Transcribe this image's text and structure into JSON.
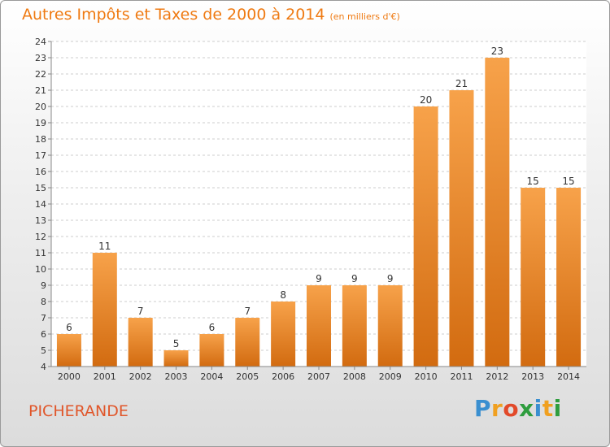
{
  "header": {
    "title": "Autres Impôts et Taxes de 2000 à 2014",
    "unit": "(en milliers d'€)"
  },
  "footer": {
    "place": "PICHERANDE",
    "brand_letters": [
      "P",
      "r",
      "o",
      "x",
      "i",
      "t",
      "i"
    ],
    "brand_colors": [
      "#3a8fd0",
      "#f0a020",
      "#e24a2a",
      "#2e9d3e",
      "#3a8fd0",
      "#f0a020",
      "#2e9d3e"
    ]
  },
  "colors": {
    "bar_light": "#f7a24a",
    "bar_dark": "#d26b10",
    "title": "#ef7a12",
    "axis_text": "#333333",
    "grid": "#cccccc"
  },
  "chart_data": {
    "type": "bar",
    "title": "Autres Impôts et Taxes de 2000 à 2014",
    "subtitle": "(en milliers d'€)",
    "categories": [
      "2000",
      "2001",
      "2002",
      "2003",
      "2004",
      "2005",
      "2006",
      "2007",
      "2008",
      "2009",
      "2010",
      "2011",
      "2012",
      "2013",
      "2014"
    ],
    "values": [
      6,
      11,
      7,
      5,
      6,
      7,
      8,
      9,
      9,
      9,
      20,
      21,
      23,
      15,
      15
    ],
    "ylim": [
      4,
      24
    ],
    "yticks": [
      4,
      5,
      6,
      7,
      8,
      9,
      10,
      11,
      12,
      13,
      14,
      15,
      16,
      17,
      18,
      19,
      20,
      21,
      22,
      23,
      24
    ],
    "xlabel": "",
    "ylabel": "",
    "grid": "horizontal dashed",
    "data_labels": true
  }
}
